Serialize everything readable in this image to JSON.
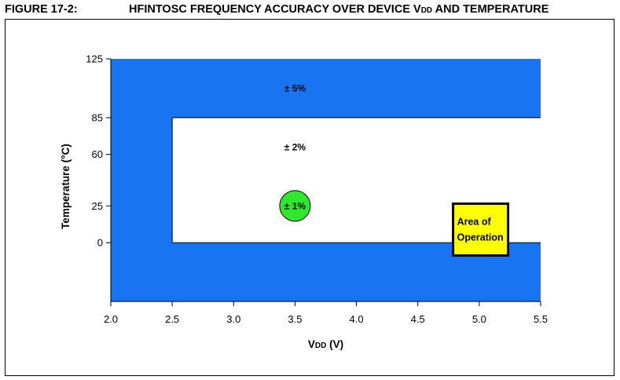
{
  "figure": {
    "number": "FIGURE 17-2:",
    "title_prefix": "HFINTOSC FREQUENCY ACCURACY OVER DEVICE V",
    "title_sub": "DD",
    "title_suffix": " AND TEMPERATURE"
  },
  "chart_data": {
    "type": "area",
    "xlabel_main": "V",
    "xlabel_sub": "DD",
    "xlabel_unit": " (V)",
    "ylabel": "Temperature (°C)",
    "xlim": [
      2.0,
      5.5
    ],
    "ylim": [
      -40,
      125
    ],
    "x_ticks": [
      2.0,
      2.5,
      3.0,
      3.5,
      4.0,
      4.5,
      5.0,
      5.5
    ],
    "x_tick_labels": [
      "2.0",
      "2.5",
      "3.0",
      "3.5",
      "4.0",
      "4.5",
      "5.0",
      "5.5"
    ],
    "y_ticks": [
      0,
      25,
      60,
      85,
      125
    ],
    "y_tick_labels": [
      "0",
      "25",
      "60",
      "85",
      "125"
    ],
    "regions": [
      {
        "label": "± 5%",
        "color": "#1874f0",
        "x": [
          2.0,
          5.5
        ],
        "y": [
          -40,
          125
        ],
        "label_at": [
          3.5,
          105
        ]
      },
      {
        "label": "± 2%",
        "color": "#ffffff",
        "x": [
          2.5,
          5.5
        ],
        "y": [
          0,
          85
        ],
        "label_at": [
          3.5,
          65
        ]
      },
      {
        "label": "± 1%",
        "color": "#2ee82e",
        "center": [
          3.5,
          25
        ],
        "label_at": [
          3.5,
          25
        ]
      }
    ],
    "annotation": {
      "lines": [
        "Area of",
        "Operation"
      ],
      "color": "#ffff00",
      "x": [
        4.8,
        5.25
      ],
      "y": [
        0,
        26
      ]
    }
  }
}
